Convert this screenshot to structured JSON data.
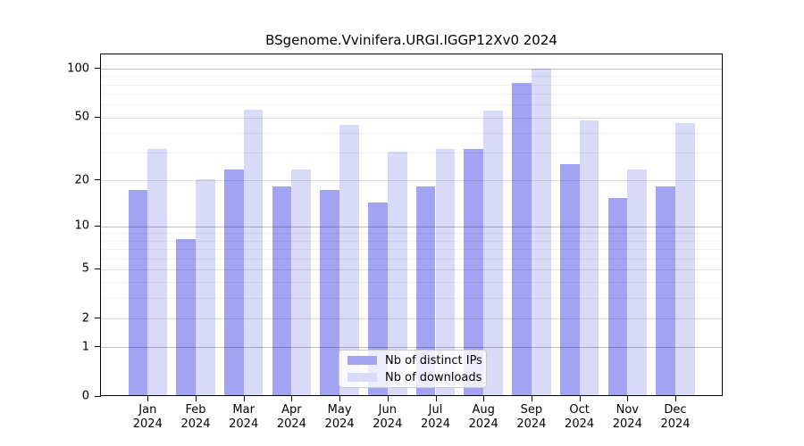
{
  "chart_data": {
    "type": "bar",
    "title": "BSgenome.Vvinifera.URGI.IGGP12Xv0 2024",
    "scale": "log1p",
    "categories": [
      "Jan",
      "Feb",
      "Mar",
      "Apr",
      "May",
      "Jun",
      "Jul",
      "Aug",
      "Sep",
      "Oct",
      "Nov",
      "Dec"
    ],
    "category_year": "2024",
    "series": [
      {
        "name": "Nb of distinct IPs",
        "color": "#a3a3f3",
        "values": [
          17,
          8,
          23,
          18,
          17,
          14,
          18,
          31,
          80,
          25,
          15,
          18
        ]
      },
      {
        "name": "Nb of downloads",
        "color": "#d9d9f8",
        "values": [
          31,
          20,
          55,
          23,
          44,
          30,
          31,
          54,
          98,
          47,
          23,
          45
        ]
      }
    ],
    "xlabel": "",
    "ylabel": "",
    "ylim": [
      0,
      123
    ],
    "yticks": [
      0,
      1,
      2,
      5,
      10,
      20,
      50,
      100
    ],
    "grid": {
      "decade_lines": [
        1,
        10,
        100
      ],
      "mid_lines": [
        2,
        5,
        20,
        50
      ],
      "minor_lines": [
        3,
        4,
        6,
        7,
        8,
        9,
        30,
        40,
        60,
        70,
        80,
        90
      ]
    },
    "legend_position": "bottom-center"
  },
  "colors": {
    "bar_ips": "#a3a3f3",
    "bar_downloads": "#d9d9f8",
    "axis": "#000000",
    "grid_decade": "rgba(0,0,0,0.25)",
    "grid_mid": "rgba(0,0,0,0.12)",
    "grid_minor": "rgba(0,0,0,0.055)",
    "legend_border": "#cccccc",
    "legend_background": "rgba(255,255,255,0.8)"
  }
}
